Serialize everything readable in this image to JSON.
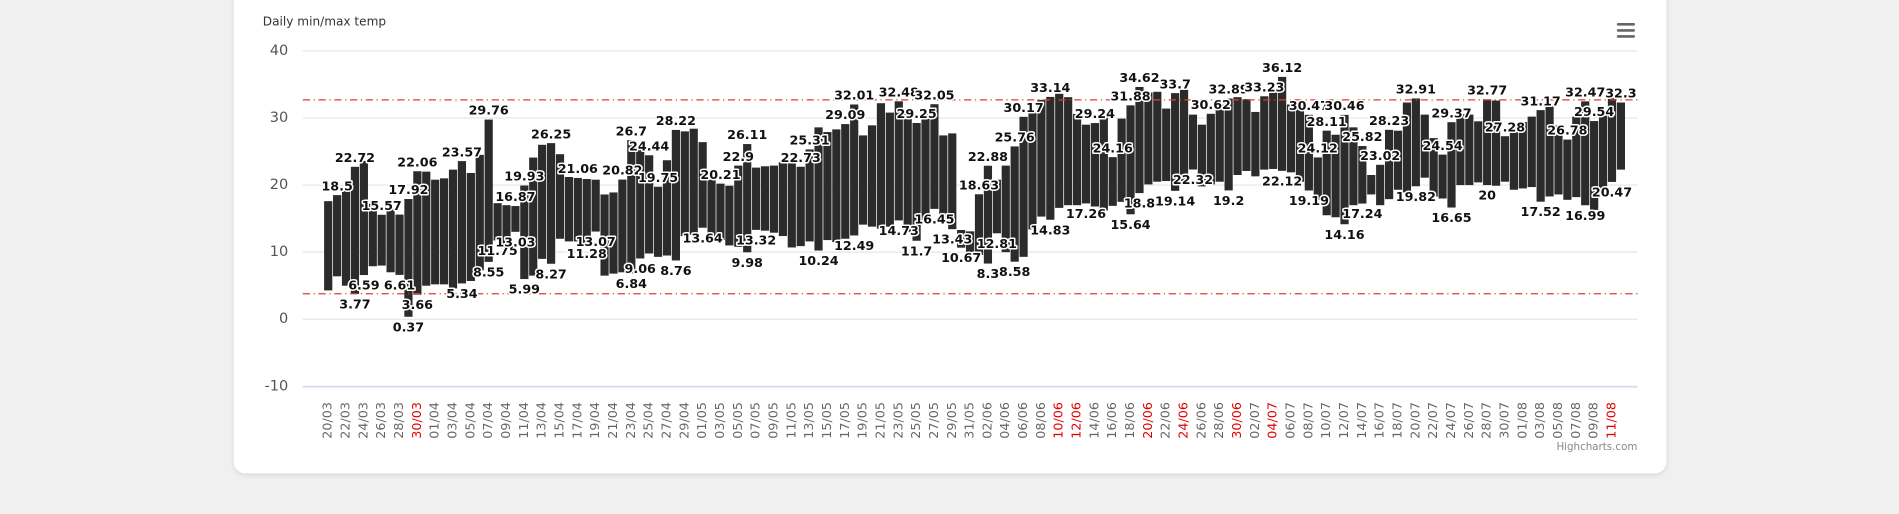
{
  "chart_data": {
    "type": "columnrange",
    "title": "Daily min/max temp",
    "credits": "Highcharts.com",
    "categories": [
      "20/03",
      null,
      "22/03",
      null,
      "24/03",
      null,
      "26/03",
      null,
      "28/03",
      null,
      "30/03",
      null,
      "01/04",
      null,
      "03/04",
      null,
      "05/04",
      null,
      "07/04",
      null,
      "09/04",
      null,
      "11/04",
      null,
      "13/04",
      null,
      "15/04",
      null,
      "17/04",
      null,
      "19/04",
      null,
      "21/04",
      null,
      "23/04",
      null,
      "25/04",
      null,
      "27/04",
      null,
      "29/04",
      null,
      "01/05",
      null,
      "03/05",
      null,
      "05/05",
      null,
      "07/05",
      null,
      "09/05",
      null,
      "11/05",
      null,
      "13/05",
      null,
      "15/05",
      null,
      "17/05",
      null,
      "19/05",
      null,
      "21/05",
      null,
      "23/05",
      null,
      "25/05",
      null,
      "27/05",
      null,
      "29/05",
      null,
      "31/05",
      null,
      "02/06",
      null,
      "04/06",
      null,
      "06/06",
      null,
      "08/06",
      null,
      "10/06",
      null,
      "12/06",
      null,
      "14/06",
      null,
      "16/06",
      null,
      "18/06",
      null,
      "20/06",
      null,
      "22/06",
      null,
      "24/06",
      null,
      "26/06",
      null,
      "28/06",
      null,
      "30/06",
      null,
      "02/07",
      null,
      "04/07",
      null,
      "06/07",
      null,
      "08/07",
      null,
      "10/07",
      null,
      "12/07",
      null,
      "14/07",
      null,
      "16/07",
      null,
      "18/07",
      null,
      "20/07",
      null,
      "22/07",
      null,
      "24/07",
      null,
      "26/07",
      null,
      "28/07",
      null,
      "30/07",
      null,
      "01/08",
      null,
      "03/08",
      null,
      "05/08",
      null,
      "07/08",
      null,
      "09/08",
      null,
      "11/08",
      null
    ],
    "highlighted_categories": [
      "30/03",
      "10/06",
      "12/06",
      "20/06",
      "24/06",
      "30/06",
      "04/07",
      "11/08"
    ],
    "highlight_color": "#e00000",
    "high": [
      17.6,
      18.5,
      19.2,
      22.72,
      23.6,
      17.2,
      15.57,
      16.4,
      15.6,
      17.92,
      22.06,
      22.0,
      20.8,
      21.0,
      22.3,
      23.57,
      21.8,
      24.5,
      29.76,
      17.3,
      17.0,
      16.87,
      19.93,
      24.1,
      26.0,
      26.25,
      24.6,
      21.2,
      21.06,
      20.9,
      20.8,
      18.6,
      18.9,
      20.82,
      26.7,
      25.8,
      24.44,
      19.75,
      23.7,
      28.22,
      28.0,
      28.4,
      26.4,
      20.8,
      20.21,
      19.9,
      22.9,
      26.11,
      22.6,
      22.8,
      22.9,
      23.4,
      23.9,
      22.73,
      25.31,
      28.6,
      27.9,
      28.3,
      29.09,
      32.01,
      27.4,
      28.9,
      32.2,
      30.8,
      32.48,
      31.0,
      29.25,
      30.6,
      32.05,
      27.4,
      27.7,
      13.3,
      13.1,
      18.63,
      22.88,
      20.8,
      22.9,
      25.76,
      30.17,
      31.0,
      32.7,
      33.14,
      33.6,
      33.1,
      30.6,
      29.0,
      29.24,
      30.5,
      24.16,
      29.9,
      31.88,
      34.62,
      33.8,
      33.9,
      31.4,
      33.7,
      34.2,
      30.5,
      29.0,
      30.62,
      32.0,
      32.89,
      33.1,
      32.8,
      30.9,
      33.23,
      34.1,
      36.12,
      32.0,
      31.7,
      30.47,
      24.12,
      28.11,
      27.5,
      30.46,
      28.6,
      25.82,
      21.5,
      23.02,
      28.23,
      28.1,
      32.3,
      32.91,
      30.5,
      27.0,
      24.54,
      29.37,
      30.6,
      30.5,
      29.5,
      32.77,
      32.6,
      27.28,
      28.6,
      29.4,
      30.2,
      31.17,
      32.0,
      28.9,
      26.78,
      30.2,
      32.47,
      29.54,
      31.1,
      33.0,
      32.3
    ],
    "low": [
      4.3,
      6.4,
      5.0,
      3.77,
      6.59,
      7.9,
      8.0,
      7.0,
      6.61,
      0.37,
      3.66,
      5.0,
      5.2,
      5.2,
      4.6,
      5.34,
      5.7,
      7.3,
      8.55,
      11.75,
      11.0,
      13.03,
      5.99,
      6.5,
      9.0,
      8.27,
      12.0,
      11.6,
      11.6,
      11.28,
      13.07,
      6.5,
      6.8,
      7.0,
      6.84,
      9.06,
      9.8,
      9.3,
      9.5,
      8.76,
      12.4,
      12.6,
      13.64,
      12.3,
      11.8,
      11.0,
      10.8,
      9.98,
      13.32,
      13.2,
      12.9,
      12.4,
      10.7,
      10.9,
      11.6,
      10.24,
      11.8,
      11.5,
      12.0,
      12.49,
      14.1,
      13.8,
      13.5,
      13.8,
      14.73,
      13.0,
      11.7,
      14.8,
      16.45,
      14.4,
      13.43,
      10.67,
      9.6,
      9.6,
      8.3,
      12.81,
      10.0,
      8.58,
      9.3,
      13.4,
      15.3,
      14.83,
      16.6,
      17.0,
      17.0,
      17.26,
      16.8,
      16.2,
      16.9,
      17.5,
      15.64,
      18.8,
      20.1,
      20.5,
      20.6,
      19.14,
      20.3,
      22.32,
      19.8,
      20.1,
      20.5,
      19.2,
      21.5,
      22.1,
      21.3,
      22.3,
      22.4,
      22.12,
      21.9,
      20.5,
      19.19,
      17.8,
      15.5,
      15.2,
      14.16,
      17.0,
      17.24,
      18.6,
      17.0,
      17.9,
      19.3,
      18.9,
      19.82,
      21.1,
      18.3,
      18.0,
      16.65,
      20.0,
      20.0,
      20.4,
      20,
      19.9,
      20.5,
      19.3,
      19.5,
      19.7,
      17.52,
      18.3,
      18.6,
      17.8,
      18.2,
      16.99,
      16.3,
      18.9,
      20.47,
      22.3
    ],
    "high_labels": [
      1,
      3,
      6,
      9,
      10,
      15,
      18,
      21,
      22,
      25,
      28,
      33,
      34,
      36,
      37,
      39,
      44,
      46,
      47,
      53,
      54,
      58,
      59,
      64,
      66,
      68,
      73,
      74,
      77,
      78,
      81,
      86,
      88,
      90,
      91,
      95,
      99,
      101,
      105,
      107,
      110,
      111,
      112,
      114,
      116,
      118,
      119,
      122,
      125,
      126,
      130,
      132,
      136,
      139,
      141,
      142,
      145
    ],
    "low_labels": [
      3,
      4,
      8,
      9,
      10,
      15,
      18,
      19,
      21,
      22,
      25,
      29,
      30,
      34,
      35,
      39,
      42,
      47,
      48,
      55,
      59,
      64,
      66,
      68,
      70,
      71,
      74,
      75,
      77,
      81,
      85,
      90,
      91,
      95,
      97,
      101,
      107,
      110,
      114,
      116,
      122,
      126,
      130,
      136,
      141,
      144
    ],
    "color": "#2b2b2b",
    "ylim": [
      -10,
      40
    ],
    "yticks": [
      -10,
      0,
      10,
      20,
      30,
      40
    ],
    "grid": true,
    "plot_lines": [
      {
        "value": 32.7,
        "color": "#e03c31"
      },
      {
        "value": 3.8,
        "color": "#e03c31"
      }
    ]
  }
}
